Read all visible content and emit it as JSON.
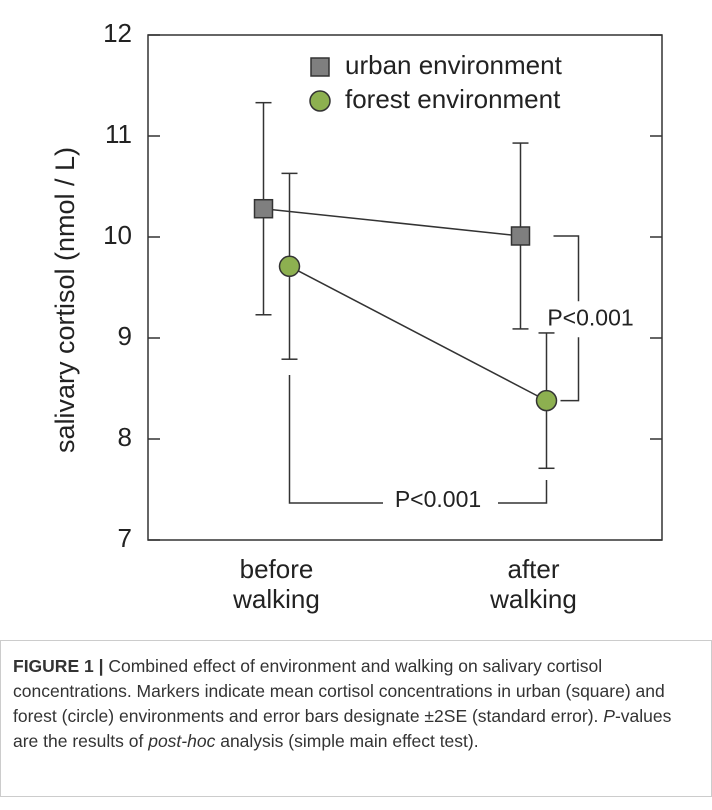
{
  "chart_data": {
    "type": "line",
    "y_label": "salivary cortisol (nmol / L)",
    "categories": [
      "before walking",
      "after walking"
    ],
    "series": [
      {
        "name": "urban environment",
        "color": "#7f7f7f",
        "marker": "square",
        "values": [
          10.28,
          10.01
        ],
        "errors": [
          1.05,
          0.92
        ]
      },
      {
        "name": "forest environment",
        "color": "#8db050",
        "marker": "circle",
        "values": [
          9.71,
          8.38
        ],
        "errors": [
          0.92,
          0.67
        ]
      }
    ],
    "ylim": [
      7,
      12
    ],
    "yticks": [
      7,
      8,
      9,
      10,
      11,
      12
    ],
    "annotations": [
      "P<0.001",
      "P<0.001"
    ]
  },
  "caption": {
    "label": "FIGURE 1 |",
    "parts": [
      {
        "text": " Combined effect of environment and walking on salivary cortisol concentrations. Markers indicate mean cortisol concentrations in urban (square) and forest (circle) environments and error bars designate ±2SE (standard error). ",
        "italic": false
      },
      {
        "text": "P",
        "italic": true
      },
      {
        "text": "-values are the results of ",
        "italic": false
      },
      {
        "text": "post-hoc",
        "italic": true
      },
      {
        "text": " analysis (simple main effect test).",
        "italic": false
      }
    ]
  }
}
